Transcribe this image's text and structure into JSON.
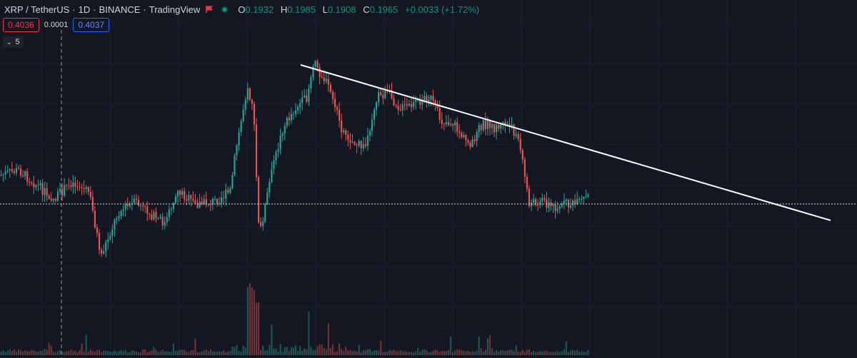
{
  "header": {
    "symbol": "XRP / TetherUS",
    "interval": "1D",
    "exchange": "BINANCE",
    "source": "TradingView",
    "separator": "·",
    "ohlc": {
      "o_label": "O",
      "o_value": "0.1932",
      "h_label": "H",
      "h_value": "0.1985",
      "l_label": "L",
      "l_value": "0.1908",
      "c_label": "C",
      "c_value": "0.1965",
      "change": "+0.0033 (+1.72%)"
    }
  },
  "trade": {
    "sell_price": "0.4036",
    "spread": "0.0001",
    "buy_price": "0.4037"
  },
  "indicators_toggle": {
    "count": "5"
  },
  "icons": {
    "flag": "flag-icon",
    "status": "market-status-dot-icon",
    "toggle": "chevron-down-icon"
  },
  "colors": {
    "background": "#131722",
    "grid": "#1c2030",
    "up": "#26a69a",
    "down": "#ef5350",
    "trendline": "#ffffff",
    "sell": "#f23645",
    "buy": "#2962ff",
    "status_dot": "#089981"
  },
  "chart_data": {
    "type": "candlestick",
    "symbol": "XRP / TetherUS",
    "interval": "1D",
    "ohlc_last": {
      "open": 0.1932,
      "high": 0.1985,
      "low": 0.1908,
      "close": 0.1965,
      "change": 0.0033,
      "change_pct": 1.72
    },
    "trend_profile": [
      [
        0,
        0.55
      ],
      [
        0.03,
        0.57
      ],
      [
        0.06,
        0.51
      ],
      [
        0.09,
        0.45
      ],
      [
        0.12,
        0.52
      ],
      [
        0.15,
        0.48
      ],
      [
        0.17,
        0.22
      ],
      [
        0.2,
        0.4
      ],
      [
        0.23,
        0.44
      ],
      [
        0.26,
        0.38
      ],
      [
        0.28,
        0.35
      ],
      [
        0.3,
        0.49
      ],
      [
        0.33,
        0.43
      ],
      [
        0.36,
        0.44
      ],
      [
        0.39,
        0.48
      ],
      [
        0.4,
        0.65
      ],
      [
        0.42,
        0.92
      ],
      [
        0.43,
        0.8
      ],
      [
        0.44,
        0.3
      ],
      [
        0.46,
        0.55
      ],
      [
        0.48,
        0.74
      ],
      [
        0.5,
        0.82
      ],
      [
        0.52,
        0.86
      ],
      [
        0.53,
        0.97
      ],
      [
        0.535,
        1.0
      ],
      [
        0.55,
        0.94
      ],
      [
        0.56,
        0.9
      ],
      [
        0.58,
        0.74
      ],
      [
        0.6,
        0.68
      ],
      [
        0.62,
        0.66
      ],
      [
        0.64,
        0.87
      ],
      [
        0.66,
        0.88
      ],
      [
        0.68,
        0.82
      ],
      [
        0.7,
        0.83
      ],
      [
        0.72,
        0.86
      ],
      [
        0.73,
        0.87
      ],
      [
        0.75,
        0.77
      ],
      [
        0.77,
        0.76
      ],
      [
        0.79,
        0.69
      ],
      [
        0.8,
        0.68
      ],
      [
        0.82,
        0.76
      ],
      [
        0.84,
        0.74
      ],
      [
        0.86,
        0.76
      ],
      [
        0.88,
        0.71
      ],
      [
        0.89,
        0.58
      ],
      [
        0.9,
        0.43
      ],
      [
        0.92,
        0.45
      ],
      [
        0.94,
        0.42
      ],
      [
        0.96,
        0.43
      ],
      [
        0.98,
        0.43
      ],
      [
        1.0,
        0.46
      ]
    ]
  }
}
